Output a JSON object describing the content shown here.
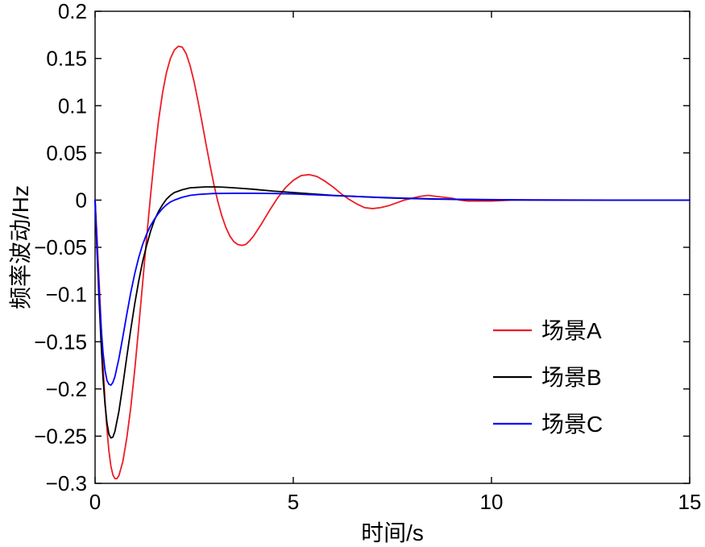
{
  "figure": {
    "background": "#ffffff",
    "axis_color": "#000000"
  },
  "chart_data": {
    "type": "line",
    "title": "",
    "xlabel": "时间/s",
    "ylabel": "频率波动/Hz",
    "xlim": [
      0,
      15
    ],
    "ylim": [
      -0.3,
      0.2
    ],
    "xticks": [
      0,
      5,
      10,
      15
    ],
    "xtick_labels": [
      "0",
      "5",
      "10",
      "15"
    ],
    "yticks": [
      -0.3,
      -0.25,
      -0.2,
      -0.15,
      -0.1,
      -0.05,
      0,
      0.05,
      0.1,
      0.15,
      0.2
    ],
    "ytick_labels": [
      "−0.3",
      "−0.25",
      "−0.2",
      "−0.15",
      "−0.1",
      "−0.05",
      "0",
      "0.05",
      "0.1",
      "0.15",
      "0.2"
    ],
    "grid": false,
    "legend_position": "right-center-lower",
    "legend_has_box": false,
    "series": [
      {
        "name": "场景A",
        "color": "#ed1c24",
        "points": [
          [
            0,
            0
          ],
          [
            0.05,
            -0.04
          ],
          [
            0.1,
            -0.085
          ],
          [
            0.15,
            -0.13
          ],
          [
            0.2,
            -0.175
          ],
          [
            0.25,
            -0.212
          ],
          [
            0.3,
            -0.243
          ],
          [
            0.35,
            -0.266
          ],
          [
            0.4,
            -0.282
          ],
          [
            0.45,
            -0.291
          ],
          [
            0.5,
            -0.295
          ],
          [
            0.55,
            -0.295
          ],
          [
            0.6,
            -0.292
          ],
          [
            0.7,
            -0.277
          ],
          [
            0.8,
            -0.252
          ],
          [
            0.9,
            -0.22
          ],
          [
            1.0,
            -0.18
          ],
          [
            1.1,
            -0.135
          ],
          [
            1.2,
            -0.088
          ],
          [
            1.3,
            -0.04
          ],
          [
            1.4,
            0.005
          ],
          [
            1.5,
            0.047
          ],
          [
            1.6,
            0.084
          ],
          [
            1.7,
            0.113
          ],
          [
            1.8,
            0.135
          ],
          [
            1.9,
            0.15
          ],
          [
            2.0,
            0.159
          ],
          [
            2.1,
            0.163
          ],
          [
            2.2,
            0.162
          ],
          [
            2.3,
            0.155
          ],
          [
            2.4,
            0.142
          ],
          [
            2.5,
            0.125
          ],
          [
            2.6,
            0.104
          ],
          [
            2.7,
            0.082
          ],
          [
            2.8,
            0.059
          ],
          [
            2.9,
            0.037
          ],
          [
            3.0,
            0.016
          ],
          [
            3.1,
            -0.002
          ],
          [
            3.2,
            -0.017
          ],
          [
            3.3,
            -0.029
          ],
          [
            3.4,
            -0.038
          ],
          [
            3.5,
            -0.044
          ],
          [
            3.6,
            -0.047
          ],
          [
            3.7,
            -0.048
          ],
          [
            3.8,
            -0.047
          ],
          [
            3.9,
            -0.043
          ],
          [
            4.0,
            -0.038
          ],
          [
            4.2,
            -0.025
          ],
          [
            4.4,
            -0.011
          ],
          [
            4.6,
            0.002
          ],
          [
            4.8,
            0.013
          ],
          [
            5.0,
            0.021
          ],
          [
            5.2,
            0.026
          ],
          [
            5.4,
            0.027
          ],
          [
            5.6,
            0.025
          ],
          [
            5.8,
            0.02
          ],
          [
            6.0,
            0.014
          ],
          [
            6.2,
            0.007
          ],
          [
            6.4,
            0.001
          ],
          [
            6.6,
            -0.004
          ],
          [
            6.8,
            -0.008
          ],
          [
            7.0,
            -0.009
          ],
          [
            7.2,
            -0.008
          ],
          [
            7.4,
            -0.006
          ],
          [
            7.6,
            -0.003
          ],
          [
            7.8,
            0.0
          ],
          [
            8.0,
            0.002
          ],
          [
            8.2,
            0.004
          ],
          [
            8.4,
            0.005
          ],
          [
            8.6,
            0.004
          ],
          [
            8.8,
            0.003
          ],
          [
            9.0,
            0.002
          ],
          [
            9.2,
            0.0
          ],
          [
            9.4,
            -0.001
          ],
          [
            9.6,
            -0.001
          ],
          [
            9.8,
            -0.001
          ],
          [
            10.0,
            -0.001
          ],
          [
            10.5,
            0.0
          ],
          [
            11.0,
            0.0
          ],
          [
            12.0,
            0.0
          ],
          [
            13.0,
            0.0
          ],
          [
            14.0,
            0.0
          ],
          [
            15.0,
            0.0
          ]
        ]
      },
      {
        "name": "场景B",
        "color": "#000000",
        "points": [
          [
            0,
            0
          ],
          [
            0.05,
            -0.055
          ],
          [
            0.1,
            -0.105
          ],
          [
            0.15,
            -0.15
          ],
          [
            0.2,
            -0.188
          ],
          [
            0.25,
            -0.216
          ],
          [
            0.3,
            -0.236
          ],
          [
            0.35,
            -0.248
          ],
          [
            0.4,
            -0.252
          ],
          [
            0.45,
            -0.251
          ],
          [
            0.5,
            -0.245
          ],
          [
            0.6,
            -0.224
          ],
          [
            0.7,
            -0.196
          ],
          [
            0.8,
            -0.166
          ],
          [
            0.9,
            -0.137
          ],
          [
            1.0,
            -0.11
          ],
          [
            1.1,
            -0.086
          ],
          [
            1.2,
            -0.065
          ],
          [
            1.3,
            -0.048
          ],
          [
            1.4,
            -0.033
          ],
          [
            1.5,
            -0.021
          ],
          [
            1.6,
            -0.012
          ],
          [
            1.7,
            -0.005
          ],
          [
            1.8,
            0.001
          ],
          [
            1.9,
            0.005
          ],
          [
            2.0,
            0.008
          ],
          [
            2.2,
            0.011
          ],
          [
            2.4,
            0.013
          ],
          [
            2.6,
            0.0135
          ],
          [
            2.8,
            0.014
          ],
          [
            3.0,
            0.014
          ],
          [
            3.2,
            0.0138
          ],
          [
            3.5,
            0.013
          ],
          [
            4.0,
            0.0115
          ],
          [
            4.5,
            0.0095
          ],
          [
            5.0,
            0.008
          ],
          [
            5.5,
            0.0065
          ],
          [
            6.0,
            0.005
          ],
          [
            6.5,
            0.004
          ],
          [
            7.0,
            0.003
          ],
          [
            7.5,
            0.0022
          ],
          [
            8.0,
            0.0016
          ],
          [
            8.5,
            0.0011
          ],
          [
            9.0,
            0.0008
          ],
          [
            9.5,
            0.0005
          ],
          [
            10.0,
            0.0003
          ],
          [
            11.0,
            0.0001
          ],
          [
            12.0,
            0.0
          ],
          [
            13.0,
            0.0
          ],
          [
            14.0,
            0.0
          ],
          [
            15.0,
            0.0
          ]
        ]
      },
      {
        "name": "场景C",
        "color": "#0000ff",
        "points": [
          [
            0,
            0
          ],
          [
            0.05,
            -0.05
          ],
          [
            0.1,
            -0.095
          ],
          [
            0.15,
            -0.133
          ],
          [
            0.2,
            -0.161
          ],
          [
            0.25,
            -0.18
          ],
          [
            0.3,
            -0.191
          ],
          [
            0.35,
            -0.195
          ],
          [
            0.4,
            -0.196
          ],
          [
            0.45,
            -0.193
          ],
          [
            0.5,
            -0.187
          ],
          [
            0.6,
            -0.168
          ],
          [
            0.7,
            -0.145
          ],
          [
            0.8,
            -0.121
          ],
          [
            0.9,
            -0.098
          ],
          [
            1.0,
            -0.078
          ],
          [
            1.1,
            -0.061
          ],
          [
            1.2,
            -0.047
          ],
          [
            1.3,
            -0.036
          ],
          [
            1.4,
            -0.027
          ],
          [
            1.5,
            -0.02
          ],
          [
            1.6,
            -0.014
          ],
          [
            1.7,
            -0.009
          ],
          [
            1.8,
            -0.005
          ],
          [
            1.9,
            -0.002
          ],
          [
            2.0,
            0.0
          ],
          [
            2.2,
            0.003
          ],
          [
            2.4,
            0.005
          ],
          [
            2.6,
            0.006
          ],
          [
            2.8,
            0.0065
          ],
          [
            3.0,
            0.007
          ],
          [
            3.5,
            0.0072
          ],
          [
            4.0,
            0.0072
          ],
          [
            4.5,
            0.007
          ],
          [
            5.0,
            0.0065
          ],
          [
            5.5,
            0.0057
          ],
          [
            6.0,
            0.0048
          ],
          [
            6.5,
            0.004
          ],
          [
            7.0,
            0.0032
          ],
          [
            7.5,
            0.0025
          ],
          [
            8.0,
            0.0019
          ],
          [
            8.5,
            0.0014
          ],
          [
            9.0,
            0.001
          ],
          [
            9.5,
            0.0007
          ],
          [
            10.0,
            0.0005
          ],
          [
            11.0,
            0.0002
          ],
          [
            12.0,
            0.0001
          ],
          [
            13.0,
            0.0
          ],
          [
            14.0,
            0.0
          ],
          [
            15.0,
            0.0
          ]
        ]
      }
    ]
  }
}
